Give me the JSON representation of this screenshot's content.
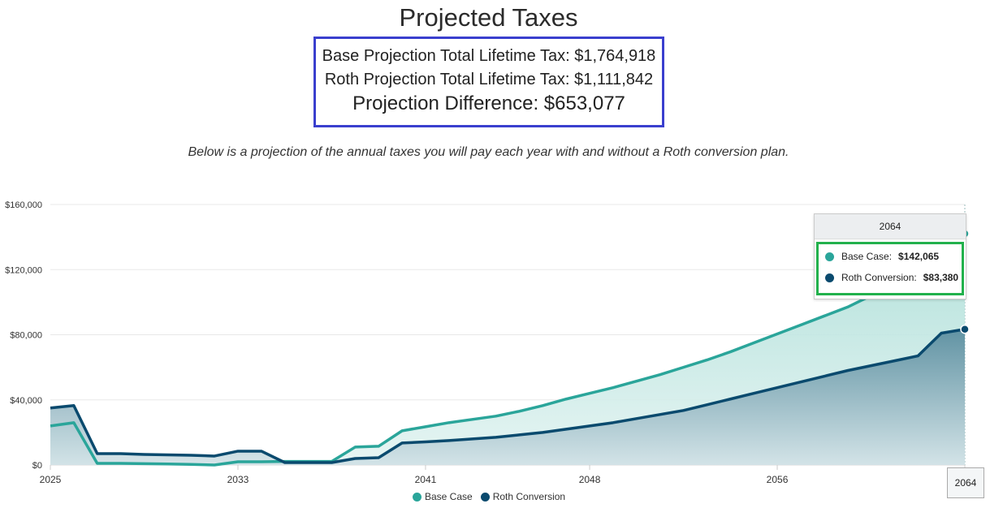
{
  "header": {
    "title": "Projected Taxes",
    "base_total": "Base Projection Total Lifetime Tax: $1,764,918",
    "roth_total": "Roth Projection Total Lifetime Tax: $1,111,842",
    "difference": "Projection Difference: $653,077",
    "subtitle": "Below is a projection of the annual taxes you will pay each year with and without a Roth conversion plan."
  },
  "colors": {
    "base": "#2aa59a",
    "roth": "#0a4a6e",
    "summary_border": "#3a3fce",
    "tooltip_border": "#22b14c"
  },
  "chart_data": {
    "type": "area",
    "x": [
      2025,
      2026,
      2027,
      2028,
      2029,
      2030,
      2031,
      2032,
      2033,
      2034,
      2035,
      2036,
      2037,
      2038,
      2039,
      2040,
      2041,
      2042,
      2043,
      2044,
      2045,
      2046,
      2047,
      2048,
      2049,
      2050,
      2051,
      2052,
      2053,
      2054,
      2055,
      2056,
      2057,
      2058,
      2059,
      2060,
      2061,
      2062,
      2063,
      2064
    ],
    "x_ticks": [
      "2025",
      "2033",
      "2041",
      "2048",
      "2056",
      "2064"
    ],
    "y_ticks": [
      "$0",
      "$40,000",
      "$80,000",
      "$120,000",
      "$160,000"
    ],
    "ylim": [
      0,
      160000
    ],
    "grid": true,
    "legend_placement": "bottom",
    "series": [
      {
        "name": "Base Case",
        "color": "#2aa59a",
        "values": [
          24000,
          26000,
          1000,
          1000,
          800,
          600,
          400,
          0,
          2000,
          2000,
          2200,
          2200,
          2200,
          11000,
          11500,
          21000,
          23500,
          26000,
          28000,
          30000,
          33000,
          36500,
          40500,
          44000,
          47500,
          51500,
          55500,
          60000,
          64500,
          69500,
          75000,
          80500,
          86000,
          91500,
          97000,
          104000,
          111000,
          119000,
          128000,
          142065
        ]
      },
      {
        "name": "Roth Conversion",
        "color": "#0a4a6e",
        "values": [
          35000,
          36500,
          7000,
          7000,
          6500,
          6200,
          6000,
          5500,
          8500,
          8500,
          1500,
          1500,
          1500,
          4000,
          4500,
          13500,
          14200,
          15000,
          16000,
          17000,
          18500,
          20000,
          22000,
          24000,
          26000,
          28500,
          31000,
          33500,
          37000,
          40500,
          44000,
          47500,
          51000,
          54500,
          58000,
          61000,
          64000,
          67000,
          81000,
          83380
        ]
      }
    ],
    "tooltip": {
      "year": "2064",
      "base_label": "Base Case:",
      "base_value": "$142,065",
      "roth_label": "Roth Conversion:",
      "roth_value": "$83,380"
    },
    "crosshair_label": "2064"
  }
}
